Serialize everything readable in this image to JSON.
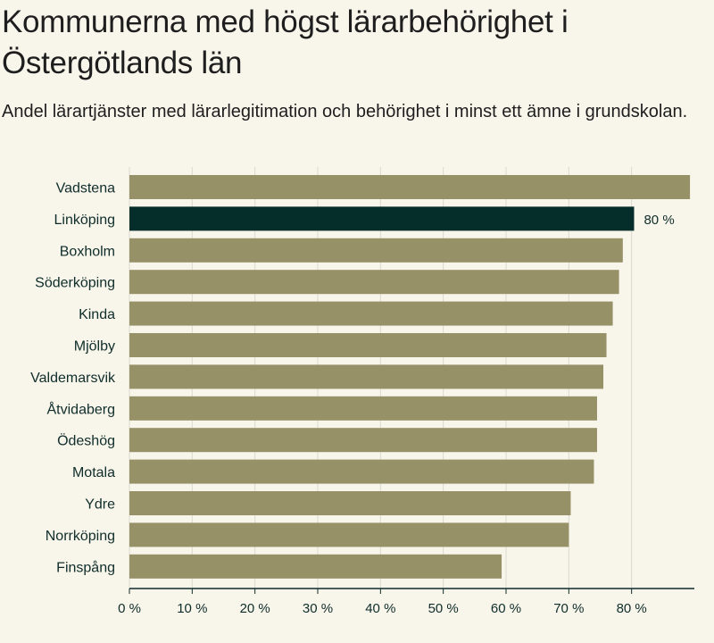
{
  "chart_data": {
    "type": "bar",
    "orientation": "horizontal",
    "title": "Kommunerna med högst lärarbehörighet i Östergötlands län",
    "subtitle": "Andel lärartjänster med lärarlegitimation och behörighet i minst ett ämne i grundskolan.",
    "categories": [
      "Vadstena",
      "Linköping",
      "Boxholm",
      "Söderköping",
      "Kinda",
      "Mjölby",
      "Valdemarsvik",
      "Åtvidaberg",
      "Ödeshög",
      "Motala",
      "Ydre",
      "Norrköping",
      "Finspång"
    ],
    "values": [
      89.3,
      80.4,
      78.6,
      78.0,
      77.0,
      76.0,
      75.5,
      74.5,
      74.5,
      74.0,
      70.3,
      70.0,
      59.3
    ],
    "highlight": {
      "category": "Linköping",
      "label": "80 %"
    },
    "xlim": [
      0,
      90
    ],
    "xticks": [
      0,
      10,
      20,
      30,
      40,
      50,
      60,
      70,
      80
    ],
    "xtick_labels": [
      "0 %",
      "10 %",
      "20 %",
      "30 %",
      "40 %",
      "50 %",
      "60 %",
      "70 %",
      "80 %"
    ],
    "xlabel": "",
    "ylabel": "",
    "grid": true,
    "colors": {
      "bar": "#979168",
      "highlight": "#052d2a",
      "grid": "#dcd9cf",
      "axis": "#0f2d2a"
    }
  }
}
